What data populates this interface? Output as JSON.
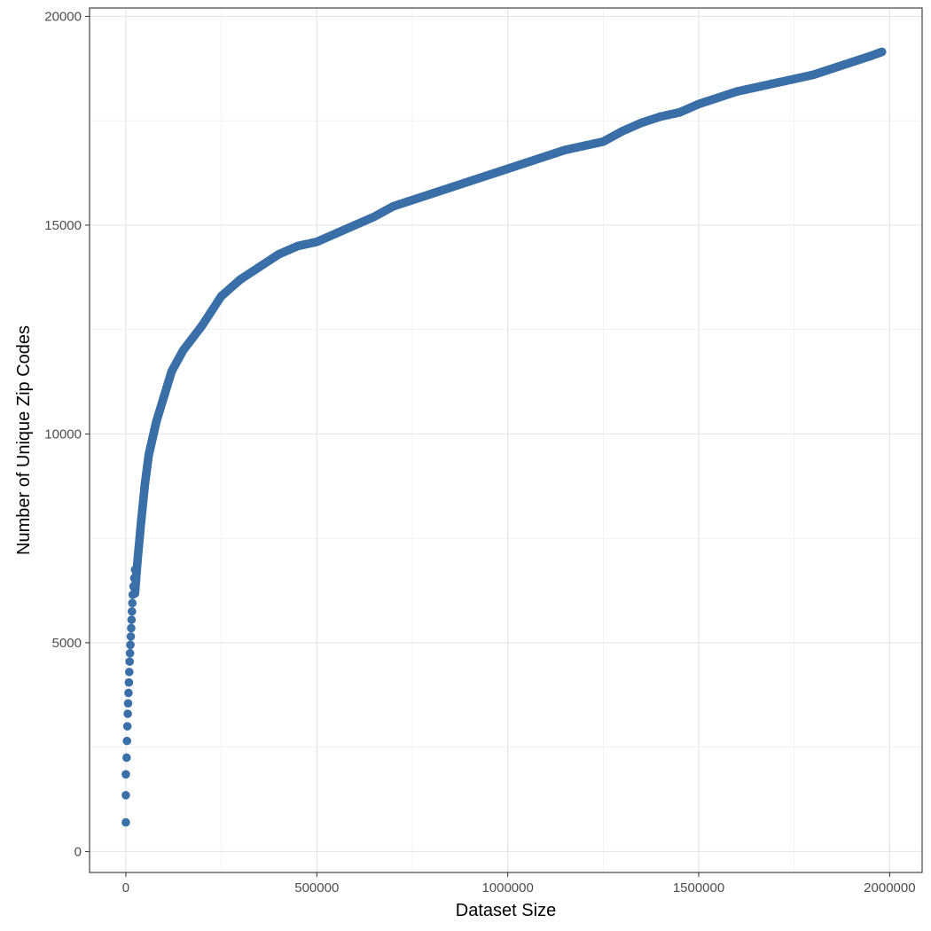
{
  "chart_data": {
    "type": "scatter",
    "title": "",
    "xlabel": "Dataset Size",
    "ylabel": "Number of Unique Zip Codes",
    "xlim": [
      -95000,
      2085000
    ],
    "ylim": [
      -500,
      20200
    ],
    "x_ticks": [
      0,
      500000,
      1000000,
      1500000,
      2000000
    ],
    "x_tick_labels": [
      "0",
      "500000",
      "1000000",
      "1500000",
      "2000000"
    ],
    "y_ticks": [
      0,
      5000,
      10000,
      15000,
      20000
    ],
    "y_tick_labels": [
      "0",
      "5000",
      "10000",
      "15000",
      "20000"
    ],
    "grid": true,
    "legend": "none",
    "series": [
      {
        "color": "#3b6fa8",
        "x": [
          0,
          10000,
          20000,
          30000,
          40000,
          50000,
          60000,
          70000,
          80000,
          100000,
          120000,
          150000,
          200000,
          250000,
          300000,
          350000,
          400000,
          450000,
          500000,
          550000,
          600000,
          650000,
          700000,
          750000,
          800000,
          850000,
          900000,
          950000,
          1000000,
          1050000,
          1100000,
          1150000,
          1200000,
          1250000,
          1300000,
          1350000,
          1400000,
          1450000,
          1500000,
          1550000,
          1600000,
          1650000,
          1700000,
          1750000,
          1800000,
          1850000,
          1900000,
          1950000,
          1980000
        ],
        "y": [
          700,
          4000,
          5700,
          6900,
          7900,
          8800,
          9500,
          9900,
          10300,
          10900,
          11500,
          12000,
          12600,
          13300,
          13700,
          14000,
          14300,
          14500,
          14600,
          14800,
          15000,
          15200,
          15450,
          15600,
          15750,
          15900,
          16050,
          16200,
          16350,
          16500,
          16650,
          16800,
          16900,
          17000,
          17250,
          17450,
          17600,
          17700,
          17900,
          18050,
          18200,
          18300,
          18400,
          18500,
          18600,
          18750,
          18900,
          19050,
          19150
        ]
      }
    ]
  }
}
